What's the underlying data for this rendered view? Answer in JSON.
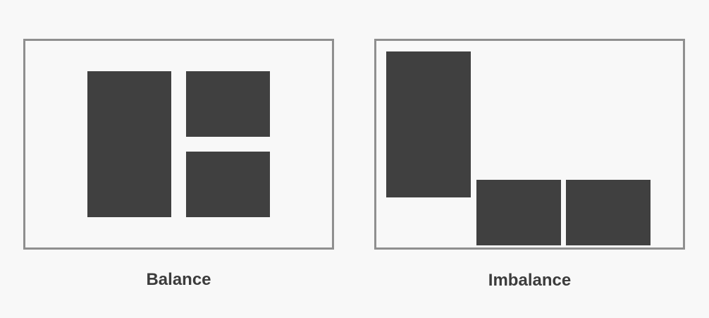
{
  "panels": [
    {
      "caption": "Balance",
      "blocks": [
        "tall-block",
        "top-right-block",
        "bottom-right-block"
      ]
    },
    {
      "caption": "Imbalance",
      "blocks": [
        "tall-block",
        "bottom-middle-block",
        "bottom-right-block"
      ]
    }
  ],
  "colors": {
    "background": "#f8f8f8",
    "frame": "#8f8f8f",
    "block": "#404040",
    "caption": "#3c3c3c"
  }
}
